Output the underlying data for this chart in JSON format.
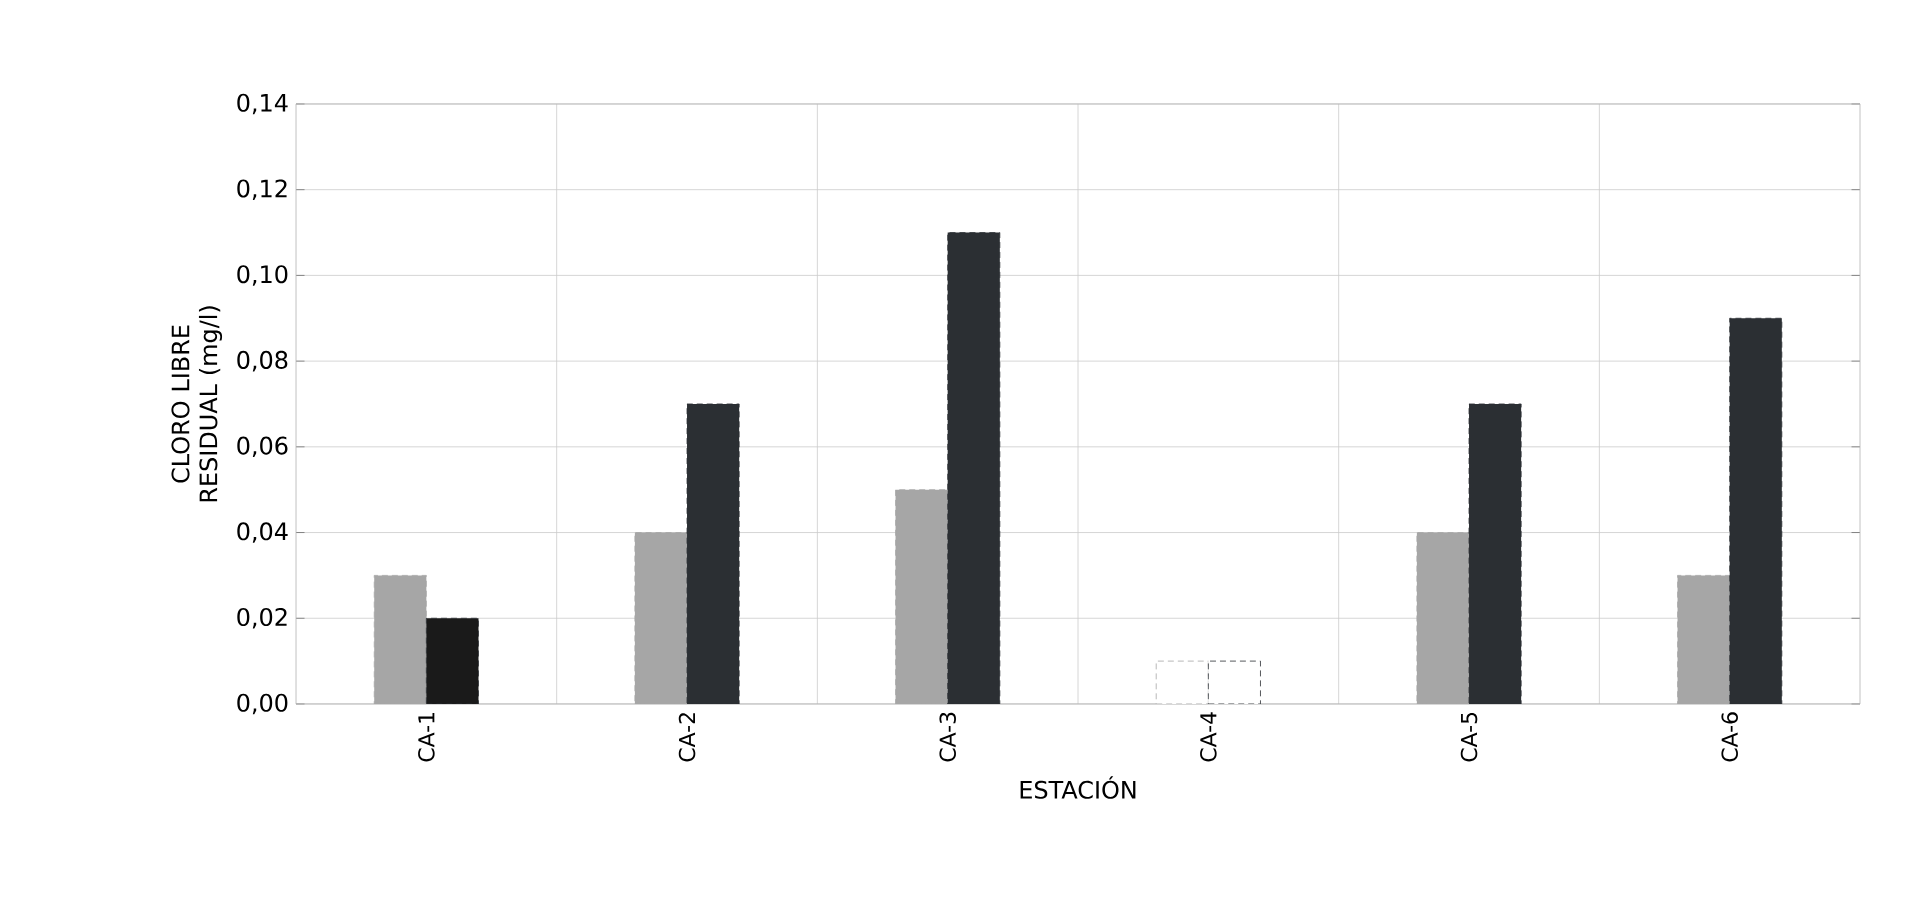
{
  "chart_data": {
    "type": "bar",
    "xlabel": "ESTACIÓN",
    "ylabel": "CLORO LIBRE RESIDUAL (mg/l)",
    "categories": [
      "CA-1",
      "CA-2",
      "CA-3",
      "CA-4",
      "CA-5",
      "CA-6"
    ],
    "series": [
      {
        "color": "#a6a6a6",
        "colors": [
          "#a6a6a6",
          "#a6a6a6",
          "#a6a6a6",
          "#ffffff",
          "#a6a6a6",
          "#a6a6a6"
        ],
        "values": [
          0.03,
          0.04,
          0.05,
          0.01,
          0.04,
          0.03
        ]
      },
      {
        "color": "#2b2f33",
        "colors": [
          "#1a1a1a",
          "#2b2f33",
          "#2b2f33",
          "#ffffff",
          "#2b2f33",
          "#2b2f33"
        ],
        "values": [
          0.02,
          0.07,
          0.11,
          0.01,
          0.07,
          0.09
        ]
      }
    ],
    "ylim": [
      0,
      0.14
    ],
    "yticks": [
      {
        "value": 0,
        "label": "0,00"
      },
      {
        "value": 0.02,
        "label": "0,02"
      },
      {
        "value": 0.04,
        "label": "0,04"
      },
      {
        "value": 0.06,
        "label": "0,06"
      },
      {
        "value": 0.08,
        "label": "0,08"
      },
      {
        "value": 0.1,
        "label": "0,10"
      },
      {
        "value": 0.12,
        "label": "0,12"
      },
      {
        "value": 0.14,
        "label": "0,14"
      }
    ],
    "grid": true
  }
}
